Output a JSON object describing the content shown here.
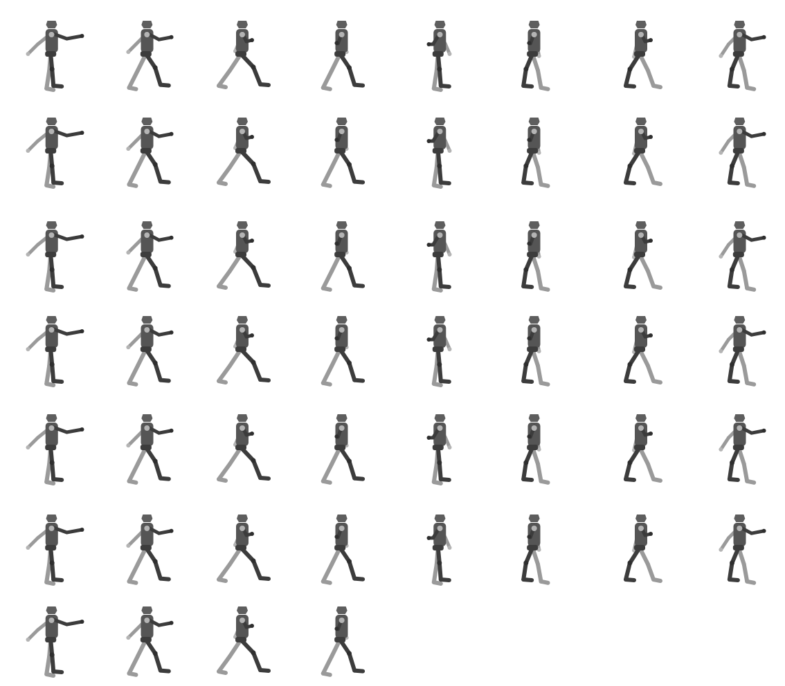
{
  "sprite_sheet": {
    "columns": 8,
    "frame_count": 52,
    "colors": {
      "background": "#ffffff",
      "dark_limb": "#3c3c3c",
      "torso": "#555555",
      "head": "#5e5e5e",
      "light_limb": "#9a9a9a",
      "light_joint": "#b4b4b4",
      "dark_joint": "#2e2e2e"
    }
  }
}
